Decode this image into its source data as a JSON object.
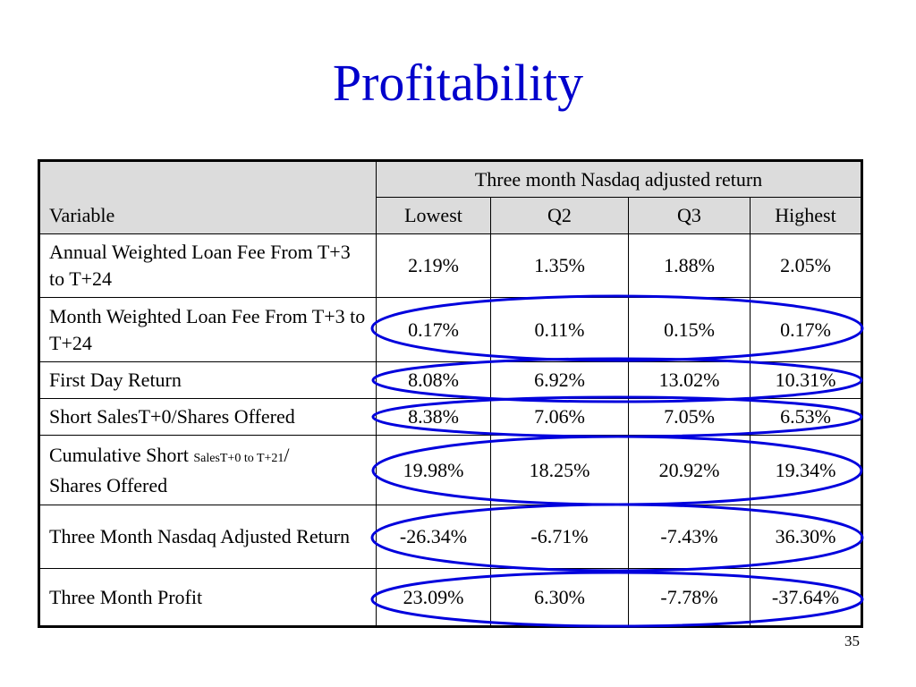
{
  "slide": {
    "title": "Profitability",
    "page_number": "35"
  },
  "table": {
    "group_header": "Three month Nasdaq adjusted return",
    "variable_header": "Variable",
    "columns": [
      "Lowest",
      "Q2",
      "Q3",
      "Highest"
    ],
    "rows": [
      {
        "label": "Annual Weighted Loan Fee From T+3 to T+24",
        "values": [
          "2.19%",
          "1.35%",
          "1.88%",
          "2.05%"
        ]
      },
      {
        "label": "Month Weighted Loan Fee From T+3 to T+24",
        "values": [
          "0.17%",
          "0.11%",
          "0.15%",
          "0.17%"
        ]
      },
      {
        "label": "First Day Return",
        "values": [
          "8.08%",
          "6.92%",
          "13.02%",
          "10.31%"
        ]
      },
      {
        "label": "Short SalesT+0/Shares Offered",
        "values": [
          "8.38%",
          "7.06%",
          "7.05%",
          "6.53%"
        ]
      },
      {
        "label_main": "Cumulative Short ",
        "label_sub": "SalesT+0 to T+21",
        "label_tail": "/",
        "label_line2": "Shares Offered",
        "values": [
          "19.98%",
          "18.25%",
          "20.92%",
          "19.34%"
        ]
      },
      {
        "label": "Three Month Nasdaq Adjusted Return",
        "values": [
          "-26.34%",
          "-6.71%",
          "-7.43%",
          "36.30%"
        ]
      },
      {
        "label": "Three Month Profit",
        "values": [
          "23.09%",
          "6.30%",
          "-7.78%",
          "-37.64%"
        ]
      }
    ]
  },
  "colors": {
    "title": "#0000cc",
    "oval_stroke": "#0000dd",
    "header_fill": "#dcdcdc"
  }
}
